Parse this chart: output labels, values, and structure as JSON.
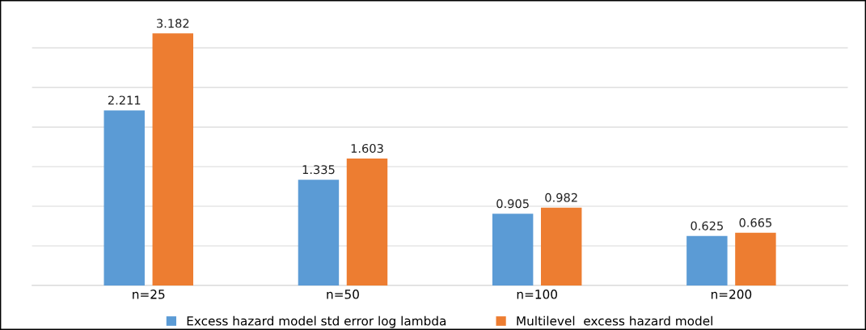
{
  "chart_data": {
    "type": "bar",
    "categories": [
      "n=25",
      "n=50",
      "n=100",
      "n=200"
    ],
    "series": [
      {
        "name": "Excess hazard model std error log lambda",
        "color": "#5b9bd5",
        "values": [
          2.211,
          1.335,
          0.905,
          0.625
        ]
      },
      {
        "name": "Multilevel  excess hazard model",
        "color": "#ed7d31",
        "values": [
          3.182,
          1.603,
          0.982,
          0.665
        ]
      }
    ],
    "yticks": [
      {
        "value": 0,
        "label": null
      },
      {
        "value": 0.5,
        "label": null
      },
      {
        "value": 1,
        "label": null
      },
      {
        "value": 1.5,
        "label": null
      },
      {
        "value": 2,
        "label": null
      },
      {
        "value": 2.5,
        "label": null
      },
      {
        "value": 3,
        "label": null
      }
    ],
    "grid": "y",
    "data_labels": true,
    "legend": "bottom"
  }
}
